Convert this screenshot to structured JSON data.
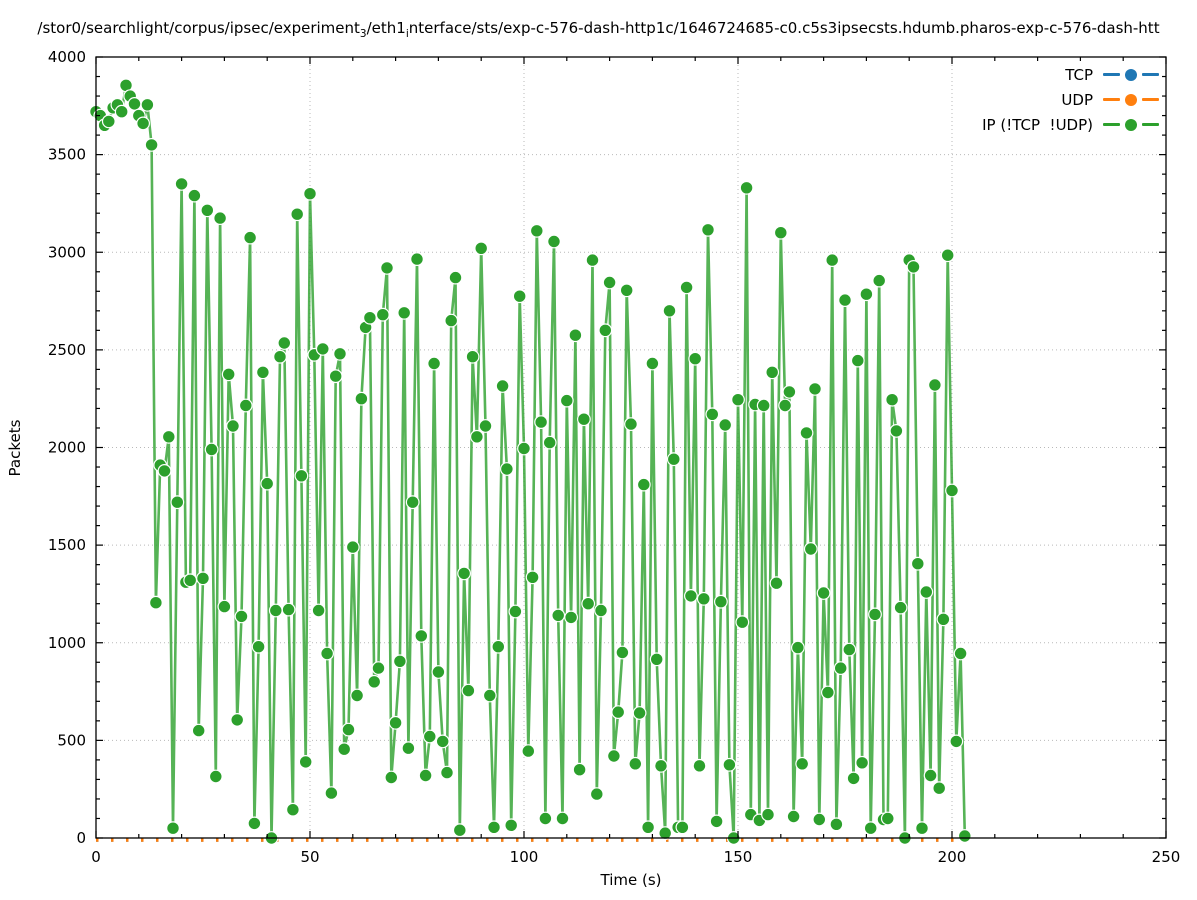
{
  "title_parts": [
    {
      "text": "/stor0/searchlight/corpus/ipsec/experiment"
    },
    {
      "sub": "3"
    },
    {
      "text": "/eth1"
    },
    {
      "sub": "i"
    },
    {
      "text": "nterface/sts/exp-c-576-dash-http1c/1646724685-c0.c5s3ipsecsts.hdumb.pharos-exp-c-576-dash-htt"
    }
  ],
  "chart_data": {
    "type": "line",
    "title": "/stor0/searchlight/corpus/ipsec/experiment_3/eth1_interface/sts/exp-c-576-dash-http1c/1646724685-c0.c5s3ipsecsts.hdumb.pharos-exp-c-576-dash-htt",
    "xlabel": "Time (s)",
    "ylabel": "Packets",
    "xlim": [
      0,
      250
    ],
    "ylim": [
      0,
      4000
    ],
    "xticks": [
      0,
      50,
      100,
      150,
      200,
      250
    ],
    "yticks": [
      0,
      500,
      1000,
      1500,
      2000,
      2500,
      3000,
      3500,
      4000
    ],
    "x_minor_step": 10,
    "y_minor_step": 100,
    "grid": true,
    "legend_position": "top-right-inside",
    "series": [
      {
        "name": "TCP",
        "color": "#1f77b4",
        "style": "dashed-line-with-points",
        "constant_value": 0,
        "t_start": 0,
        "t_end": 203
      },
      {
        "name": "UDP",
        "color": "#ff7f0e",
        "style": "dashed-line-with-points",
        "constant_value": 0,
        "t_start": 0,
        "t_end": 203
      },
      {
        "name": "IP (!TCP  !UDP)",
        "color": "#2ca02c",
        "style": "line-with-points",
        "t_start": 0,
        "t_step": 1,
        "values": [
          3720,
          3700,
          3650,
          3670,
          3740,
          3755,
          3720,
          3855,
          3800,
          3760,
          3700,
          3660,
          3755,
          3550,
          1205,
          1910,
          1880,
          2055,
          50,
          1720,
          3350,
          1310,
          1320,
          3290,
          550,
          1330,
          3215,
          1990,
          315,
          3175,
          1185,
          2375,
          2110,
          605,
          1135,
          2215,
          3075,
          75,
          980,
          2385,
          1815,
          0,
          1165,
          2465,
          2535,
          1170,
          145,
          3195,
          1855,
          390,
          3300,
          2475,
          1165,
          2505,
          945,
          230,
          2365,
          2480,
          455,
          555,
          1490,
          730,
          2250,
          2615,
          2665,
          800,
          870,
          2680,
          2920,
          310,
          590,
          905,
          2690,
          460,
          1720,
          2965,
          1035,
          320,
          520,
          2430,
          850,
          495,
          335,
          2650,
          2870,
          40,
          1355,
          755,
          2465,
          2055,
          3020,
          2110,
          730,
          55,
          980,
          2315,
          1890,
          65,
          1160,
          2775,
          1995,
          445,
          1335,
          3110,
          2130,
          100,
          2025,
          3055,
          1140,
          100,
          2240,
          1130,
          2575,
          350,
          2145,
          1200,
          2960,
          225,
          1165,
          2600,
          2845,
          420,
          645,
          950,
          2805,
          2120,
          380,
          640,
          1810,
          55,
          2430,
          915,
          370,
          25,
          2700,
          1940,
          55,
          55,
          2820,
          1240,
          2455,
          370,
          1225,
          3115,
          2170,
          85,
          1210,
          2115,
          375,
          0,
          2245,
          1105,
          3330,
          120,
          2220,
          90,
          2215,
          120,
          2385,
          1305,
          3100,
          2215,
          2285,
          110,
          975,
          380,
          2075,
          1480,
          2300,
          95,
          1255,
          745,
          2960,
          70,
          870,
          2755,
          965,
          305,
          2445,
          385,
          2785,
          50,
          1145,
          2855,
          95,
          100,
          2245,
          2085,
          1180,
          0,
          2960,
          2925,
          1405,
          50,
          1260,
          320,
          2320,
          255,
          1120,
          2985,
          1780,
          495,
          945,
          10
        ]
      }
    ]
  }
}
